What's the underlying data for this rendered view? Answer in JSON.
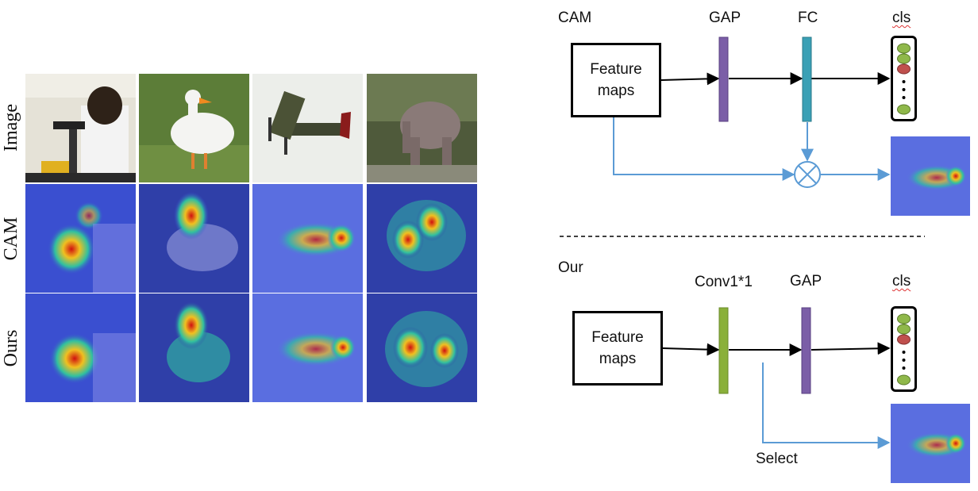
{
  "grid": {
    "row_labels": [
      "Image",
      "CAM",
      "Ours"
    ]
  },
  "cam_branch": {
    "title": "CAM",
    "feature_maps": "Feature\nmaps",
    "gap": "GAP",
    "fc": "FC",
    "cls": "cls"
  },
  "our_branch": {
    "title": "Our",
    "feature_maps": "Feature\nmaps",
    "conv": "Conv1*1",
    "gap": "GAP",
    "cls": "cls",
    "select": "Select"
  },
  "colors": {
    "gap_bar": "#7b5ea7",
    "fc_bar": "#3aa0b5",
    "conv_bar": "#8ab03a",
    "arrow_blue": "#5b9bd5",
    "node_green": "#8fb84a",
    "node_red": "#c0504d"
  },
  "icons": {
    "multiply": "circle-times-icon",
    "dots": "vertical-ellipsis-icon"
  }
}
